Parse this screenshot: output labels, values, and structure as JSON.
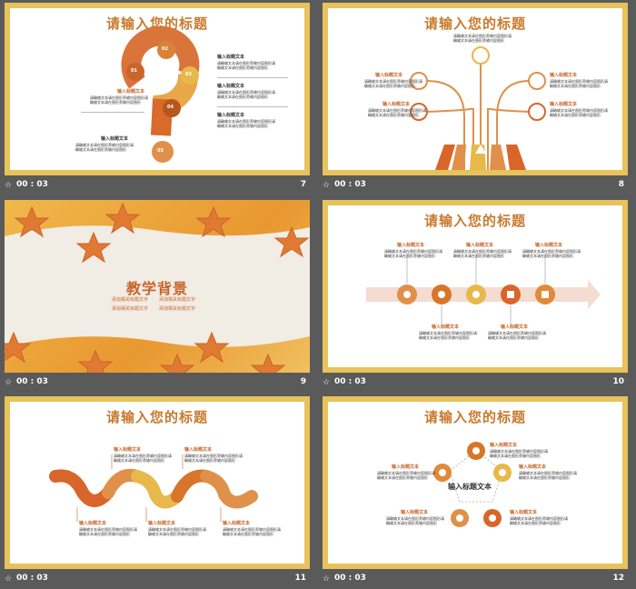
{
  "slides": [
    {
      "number": "7",
      "duration": "00 : 03",
      "title": "请输入您的标题",
      "steps": [
        "01",
        "02",
        "03",
        "04",
        "05"
      ],
      "label": "输入标题文本",
      "body": "请輸输文本请在图形旁输内容图形请輸输文本请在图形旁输内容图形"
    },
    {
      "number": "8",
      "duration": "00 : 03",
      "title": "请输入您的标题",
      "label": "输入标题文本",
      "body": "请輸输文本请在图形旁输内容图形请輸输文本请在图形旁输内容图形"
    },
    {
      "number": "9",
      "duration": "00 : 03",
      "title": "教学背景",
      "bullets": [
        "添加相关标题文字",
        "添加相关标题文字",
        "添加相关标题文字",
        "添加相关标题文字"
      ]
    },
    {
      "number": "10",
      "duration": "00 : 03",
      "title": "请输入您的标题",
      "label": "输入标题文本",
      "body": "请輸输文本请在图形旁输内容图形请輸输文本请在图形旁输内容图形"
    },
    {
      "number": "11",
      "duration": "00 : 03",
      "title": "请输入您的标题",
      "label": "输入标题文本",
      "body": "请輸输文本请在图形旁输内容图形请輸输文本请在图形旁输内容图形"
    },
    {
      "number": "12",
      "duration": "00 : 03",
      "title": "请输入您的标题",
      "center": "输入标题文本",
      "label": "输入标题文本",
      "body": "请輸输文本请在图形旁输内容图形请輸输文本请在图形旁输内容图形"
    }
  ],
  "icons": {
    "play": "play-icon"
  },
  "colors": {
    "accent": "#c87a2e",
    "frame": "#e8c25a",
    "orange": "#e07a32",
    "dark": "#c8652a",
    "yellow": "#e8c25a"
  }
}
